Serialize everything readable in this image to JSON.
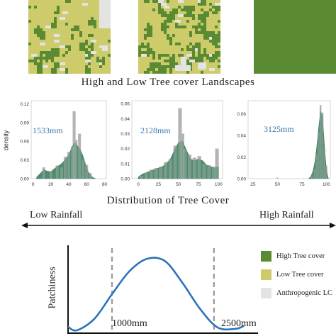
{
  "colors": {
    "high_tree": "#5a8a32",
    "low_tree": "#cdcb6a",
    "anthropogenic": "#e3e3e3",
    "curve": "#2a74b8",
    "density_fill": "#2e7a55",
    "hist_bar": "#a3a3a3"
  },
  "landscapes": {
    "title": "High and Low Tree cover Landscapes",
    "maps": [
      {
        "name": "low-tree-map",
        "high_tree_fraction": 0.22,
        "anthropogenic_fraction": 0.06
      },
      {
        "name": "mixed-tree-map",
        "high_tree_fraction": 0.42,
        "anthropogenic_fraction": 0.04
      },
      {
        "name": "high-tree-map",
        "high_tree_fraction": 0.99,
        "anthropogenic_fraction": 0.0
      }
    ]
  },
  "density_ylabel": "density",
  "distribution_title": "Distribution of Tree Cover",
  "rainfall_axis": {
    "left_label": "Low Rainfall",
    "right_label": "High Rainfall"
  },
  "patchiness": {
    "ylabel": "Patchiness",
    "threshold_low": "1000mm",
    "threshold_high": "2500mm"
  },
  "legend": [
    {
      "label": "High Tree cover",
      "color_key": "high_tree"
    },
    {
      "label": "Low Tree cover",
      "color_key": "low_tree"
    },
    {
      "label": "Anthropogenic LC",
      "color_key": "anthropogenic"
    }
  ],
  "chart_data": [
    {
      "type": "bar",
      "rainfall_label": "1533mm",
      "xlim": [
        -2,
        82
      ],
      "ylim": [
        0,
        0.125
      ],
      "x_ticks": [
        "0",
        "20",
        "40",
        "60",
        "80"
      ],
      "y_ticks": [
        "0.00",
        "0.03",
        "0.06",
        "0.09",
        "0.12"
      ],
      "bins": [
        12,
        20,
        27,
        32,
        36,
        40,
        44,
        46,
        48,
        52,
        56,
        60,
        64
      ],
      "values": [
        0.018,
        0.012,
        0.021,
        0.018,
        0.035,
        0.043,
        0.051,
        0.108,
        0.062,
        0.072,
        0.031,
        0.022,
        0.009
      ],
      "density_x": [
        4,
        8,
        12,
        16,
        20,
        24,
        28,
        32,
        36,
        40,
        44,
        47,
        50,
        53,
        56,
        59,
        62,
        65,
        68,
        70
      ],
      "density_y": [
        0.002,
        0.008,
        0.014,
        0.012,
        0.011,
        0.016,
        0.02,
        0.024,
        0.03,
        0.038,
        0.052,
        0.058,
        0.052,
        0.046,
        0.036,
        0.022,
        0.01,
        0.004,
        0.001,
        0.0
      ]
    },
    {
      "type": "bar",
      "rainfall_label": "2128mm",
      "xlim": [
        -8,
        105
      ],
      "ylim": [
        0,
        0.052
      ],
      "x_ticks": [
        "0",
        "25",
        "50",
        "75",
        "100"
      ],
      "y_ticks": [
        "0.00",
        "0.01",
        "0.02",
        "0.03",
        "0.04",
        "0.05"
      ],
      "bins": [
        4,
        10,
        16,
        22,
        28,
        34,
        40,
        46,
        52,
        55,
        58,
        64,
        70,
        76,
        82,
        88,
        94,
        98
      ],
      "values": [
        0.002,
        0.004,
        0.006,
        0.007,
        0.008,
        0.011,
        0.013,
        0.022,
        0.047,
        0.03,
        0.02,
        0.016,
        0.014,
        0.015,
        0.01,
        0.009,
        0.008,
        0.02
      ],
      "density_x": [
        0,
        5,
        10,
        15,
        20,
        25,
        30,
        35,
        40,
        45,
        50,
        55,
        60,
        65,
        70,
        75,
        80,
        85,
        90,
        95,
        100
      ],
      "density_y": [
        0.001,
        0.003,
        0.004,
        0.005,
        0.006,
        0.007,
        0.008,
        0.01,
        0.013,
        0.019,
        0.024,
        0.025,
        0.019,
        0.013,
        0.012,
        0.013,
        0.012,
        0.009,
        0.008,
        0.007,
        0.008
      ]
    },
    {
      "type": "bar",
      "rainfall_label": "3125mm",
      "xlim": [
        20,
        104
      ],
      "ylim": [
        0,
        0.072
      ],
      "x_ticks": [
        "25",
        "50",
        "75",
        "100"
      ],
      "y_ticks": [
        "0.00",
        "0.02",
        "0.04",
        "0.06"
      ],
      "bins": [
        50,
        85,
        88,
        90,
        92,
        94,
        96,
        98,
        100
      ],
      "values": [
        0.001,
        0.003,
        0.009,
        0.022,
        0.043,
        0.068,
        0.061,
        0.028,
        0.012
      ],
      "density_x": [
        82,
        84,
        86,
        88,
        90,
        92,
        94,
        96,
        98,
        100,
        102
      ],
      "density_y": [
        0.0,
        0.002,
        0.006,
        0.014,
        0.028,
        0.046,
        0.062,
        0.058,
        0.03,
        0.008,
        0.0
      ]
    },
    {
      "type": "line",
      "xlabel": "",
      "ylabel": "Patchiness",
      "x": [
        0,
        0.5,
        1.5,
        2.5,
        3.5,
        4.5,
        5.5,
        6.5,
        7.5,
        8.5,
        9.5,
        10
      ],
      "y": [
        0.05,
        0.0,
        0.16,
        0.5,
        0.82,
        0.99,
        0.96,
        0.66,
        0.3,
        0.04,
        0.02,
        0.06
      ],
      "annotations": [
        "1000mm",
        "2500mm"
      ]
    }
  ]
}
